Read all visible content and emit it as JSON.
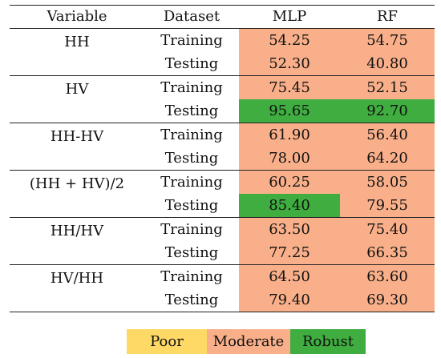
{
  "header": {
    "variable": "Variable",
    "dataset": "Dataset",
    "mlp": "MLP",
    "rf": "RF"
  },
  "groups": [
    {
      "variable": "HH",
      "rows": [
        {
          "dataset": "Training",
          "mlp": "54.25",
          "rf": "54.75",
          "mlp_class": "moderate",
          "rf_class": "moderate"
        },
        {
          "dataset": "Testing",
          "mlp": "52.30",
          "rf": "40.80",
          "mlp_class": "moderate",
          "rf_class": "moderate"
        }
      ]
    },
    {
      "variable": "HV",
      "rows": [
        {
          "dataset": "Training",
          "mlp": "75.45",
          "rf": "52.15",
          "mlp_class": "moderate",
          "rf_class": "moderate"
        },
        {
          "dataset": "Testing",
          "mlp": "95.65",
          "rf": "92.70",
          "mlp_class": "robust",
          "rf_class": "robust"
        }
      ]
    },
    {
      "variable": "HH-HV",
      "rows": [
        {
          "dataset": "Training",
          "mlp": "61.90",
          "rf": "56.40",
          "mlp_class": "moderate",
          "rf_class": "moderate"
        },
        {
          "dataset": "Testing",
          "mlp": "78.00",
          "rf": "64.20",
          "mlp_class": "moderate",
          "rf_class": "moderate"
        }
      ]
    },
    {
      "variable": "(HH + HV)/2",
      "rows": [
        {
          "dataset": "Training",
          "mlp": "60.25",
          "rf": "58.05",
          "mlp_class": "moderate",
          "rf_class": "moderate"
        },
        {
          "dataset": "Testing",
          "mlp": "85.40",
          "rf": "79.55",
          "mlp_class": "robust",
          "rf_class": "moderate"
        }
      ]
    },
    {
      "variable": "HH/HV",
      "rows": [
        {
          "dataset": "Training",
          "mlp": "63.50",
          "rf": "75.40",
          "mlp_class": "moderate",
          "rf_class": "moderate"
        },
        {
          "dataset": "Testing",
          "mlp": "77.25",
          "rf": "66.35",
          "mlp_class": "moderate",
          "rf_class": "moderate"
        }
      ]
    },
    {
      "variable": "HV/HH",
      "rows": [
        {
          "dataset": "Training",
          "mlp": "64.50",
          "rf": "63.60",
          "mlp_class": "moderate",
          "rf_class": "moderate"
        },
        {
          "dataset": "Testing",
          "mlp": "79.40",
          "rf": "69.30",
          "mlp_class": "moderate",
          "rf_class": "moderate"
        }
      ]
    }
  ],
  "legend": [
    {
      "label": "Poor",
      "class": "poor"
    },
    {
      "label": "Moderate",
      "class": "moderate"
    },
    {
      "label": "Robust",
      "class": "robust"
    }
  ],
  "colors": {
    "poor": "#ffd966",
    "moderate": "#f9b08a",
    "robust": "#3fad3f"
  }
}
